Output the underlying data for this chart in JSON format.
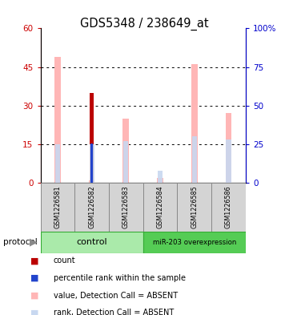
{
  "title": "GDS5348 / 238649_at",
  "samples": [
    "GSM1226581",
    "GSM1226582",
    "GSM1226583",
    "GSM1226584",
    "GSM1226585",
    "GSM1226586"
  ],
  "pink_values": [
    49,
    1,
    25,
    2,
    46,
    27
  ],
  "red_values": [
    0,
    35,
    0,
    0,
    0,
    0
  ],
  "lightblue_values": [
    25,
    25,
    27,
    8,
    30,
    28
  ],
  "blue_values": [
    0,
    25.5,
    0,
    0,
    0,
    0
  ],
  "left_ylim": [
    0,
    60
  ],
  "right_ylim": [
    0,
    100
  ],
  "left_yticks": [
    0,
    15,
    30,
    45,
    60
  ],
  "right_yticks": [
    0,
    25,
    50,
    75,
    100
  ],
  "left_tick_labels": [
    "0",
    "15",
    "30",
    "45",
    "60"
  ],
  "right_tick_labels": [
    "0",
    "25",
    "50",
    "75",
    "100%"
  ],
  "pink_color": "#ffb6b6",
  "red_color": "#bb0000",
  "lightblue_color": "#c8d8f0",
  "blue_color": "#2244cc",
  "bg_color": "#ffffff",
  "label_color_left": "#cc0000",
  "label_color_right": "#0000cc",
  "legend_items": [
    "count",
    "percentile rank within the sample",
    "value, Detection Call = ABSENT",
    "rank, Detection Call = ABSENT"
  ],
  "legend_colors": [
    "#bb0000",
    "#2244cc",
    "#ffb6b6",
    "#c8d8f0"
  ],
  "ctrl_color": "#aaeaaa",
  "mir_color": "#55cc55",
  "gray_box_color": "#d4d4d4"
}
